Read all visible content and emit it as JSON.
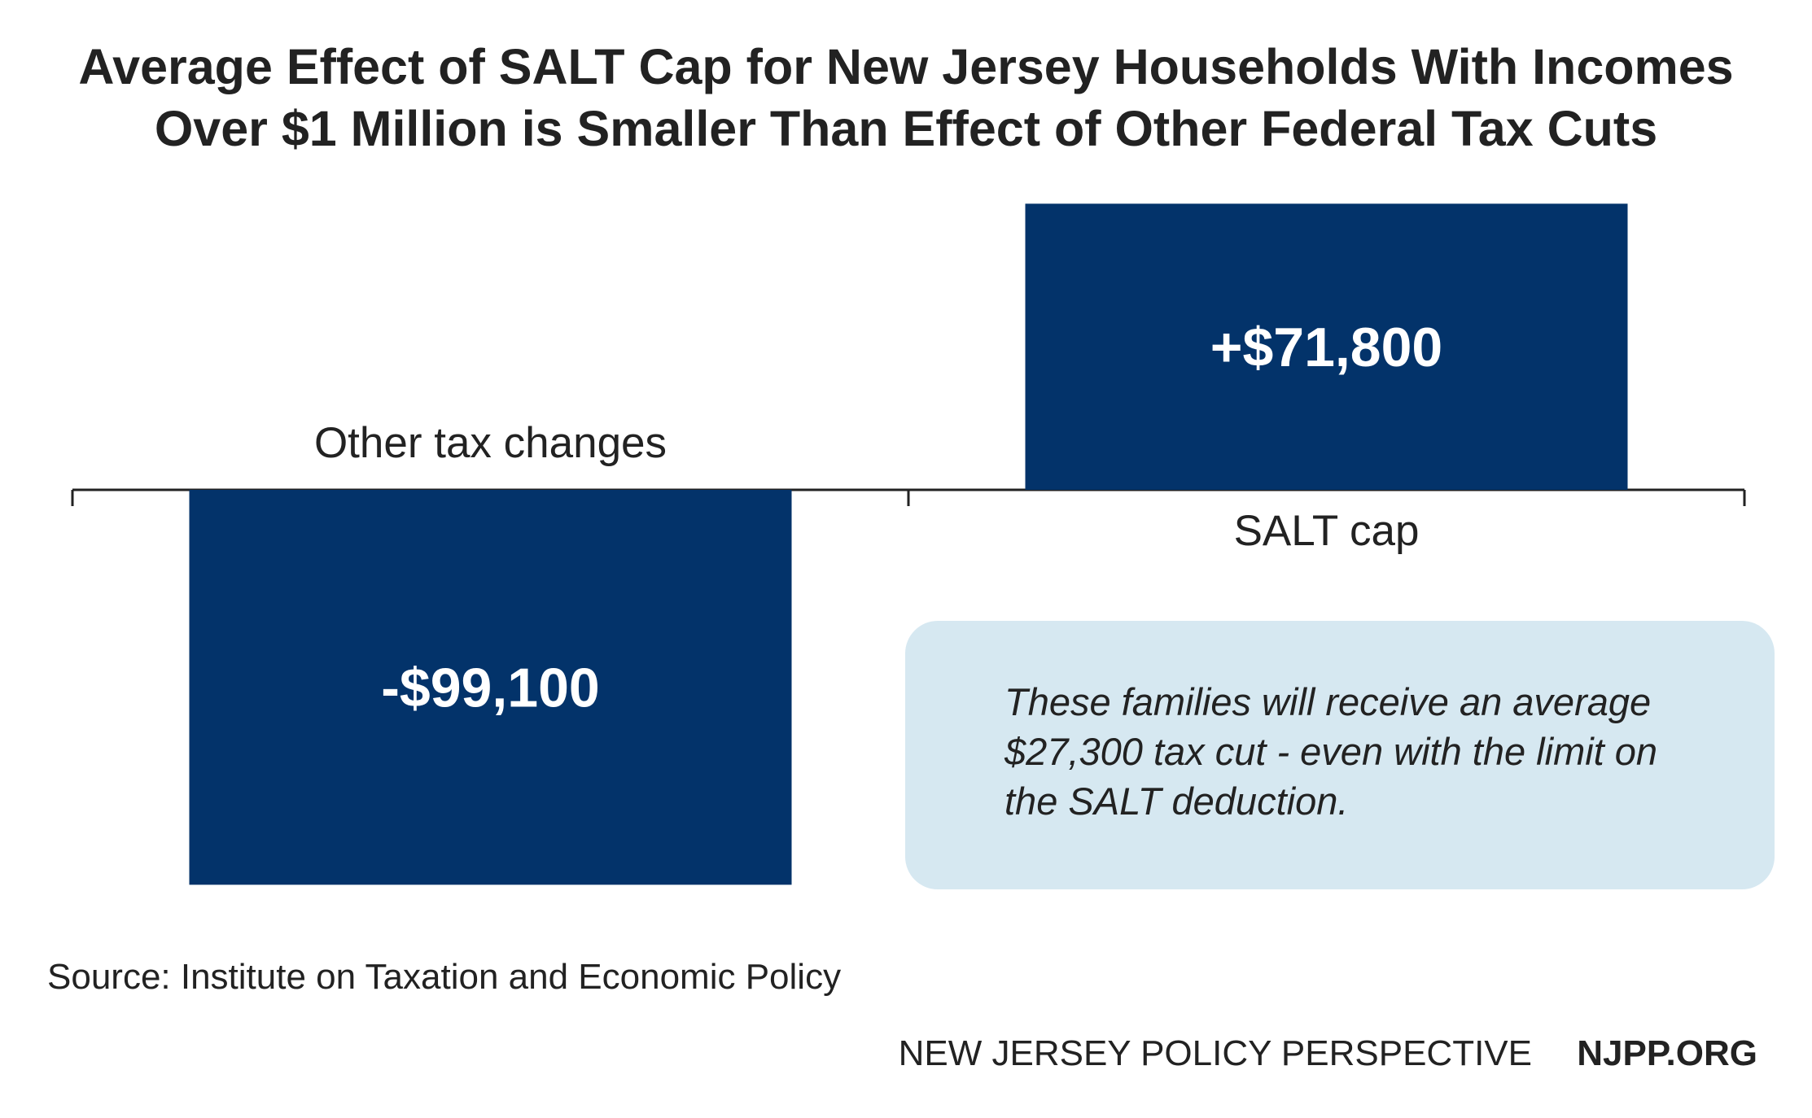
{
  "chart_data": {
    "type": "bar",
    "title_lines": [
      "Average Effect of SALT Cap for New Jersey Households With Incomes",
      "Over $1 Million is Smaller Than Effect of Other Federal Tax Cuts"
    ],
    "categories": [
      "Other tax changes",
      "SALT cap"
    ],
    "values": [
      -99100,
      71800
    ],
    "data_labels": [
      "-$99,100",
      "+$71,800"
    ],
    "ylim": [
      -99100,
      71800
    ],
    "grid": false,
    "legend": "none",
    "annotation": "These families will receive an average $27,300 tax cut - even with the limit on the SALT deduction."
  },
  "source": "Source: Institute on Taxation and Economic Policy",
  "footer": {
    "organization": "NEW JERSEY POLICY PERSPECTIVE",
    "website": "NJPP.ORG"
  },
  "colors": {
    "bar": "#03336a",
    "callout_background": "#d6e8f1",
    "text": "#222222",
    "bar_label": "#ffffff"
  }
}
